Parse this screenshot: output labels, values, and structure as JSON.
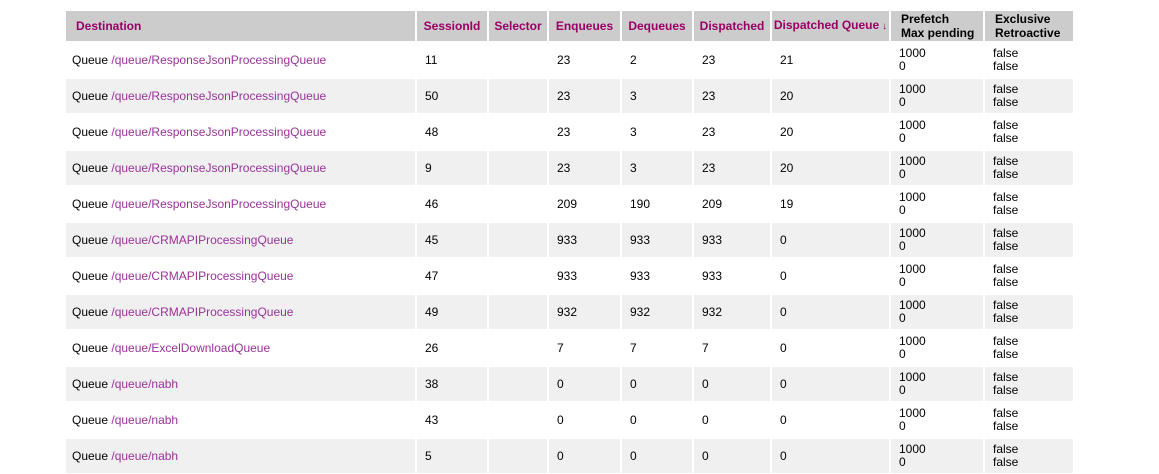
{
  "colors": {
    "header_bg": "#cccccc",
    "header_link": "#990066",
    "header_plain_text": "#000000",
    "row_stripe_bg": "#f0f0f0",
    "body_link": "#993399",
    "body_text": "#000000"
  },
  "table": {
    "columns": [
      {
        "id": "destination",
        "label": "Destination",
        "type": "link",
        "align": "left"
      },
      {
        "id": "session-id",
        "label": "SessionId",
        "type": "link",
        "align": "center"
      },
      {
        "id": "selector",
        "label": "Selector",
        "type": "link",
        "align": "center"
      },
      {
        "id": "enqueues",
        "label": "Enqueues",
        "type": "link",
        "align": "center"
      },
      {
        "id": "dequeues",
        "label": "Dequeues",
        "type": "link",
        "align": "center"
      },
      {
        "id": "dispatched",
        "label": "Dispatched",
        "type": "link",
        "align": "center"
      },
      {
        "id": "dispatched-queue",
        "label": "Dispatched Queue",
        "type": "link",
        "align": "center",
        "sort_indicator": "↓"
      },
      {
        "id": "prefetch-max-pending",
        "lines": [
          "Prefetch",
          "Max pending"
        ],
        "type": "plain",
        "align": "left"
      },
      {
        "id": "exclusive-retroactive",
        "lines": [
          "Exclusive",
          "Retroactive"
        ],
        "type": "plain",
        "align": "left"
      }
    ],
    "rows": [
      {
        "destination_prefix": "Queue",
        "destination_link": "/queue/ResponseJsonProcessingQueue",
        "session_id": "11",
        "selector": "",
        "enqueues": "23",
        "dequeues": "2",
        "dispatched": "23",
        "dispatched_queue": "21",
        "prefetch": "1000",
        "max_pending": "0",
        "exclusive": "false",
        "retroactive": "false"
      },
      {
        "destination_prefix": "Queue",
        "destination_link": "/queue/ResponseJsonProcessingQueue",
        "session_id": "50",
        "selector": "",
        "enqueues": "23",
        "dequeues": "3",
        "dispatched": "23",
        "dispatched_queue": "20",
        "prefetch": "1000",
        "max_pending": "0",
        "exclusive": "false",
        "retroactive": "false"
      },
      {
        "destination_prefix": "Queue",
        "destination_link": "/queue/ResponseJsonProcessingQueue",
        "session_id": "48",
        "selector": "",
        "enqueues": "23",
        "dequeues": "3",
        "dispatched": "23",
        "dispatched_queue": "20",
        "prefetch": "1000",
        "max_pending": "0",
        "exclusive": "false",
        "retroactive": "false"
      },
      {
        "destination_prefix": "Queue",
        "destination_link": "/queue/ResponseJsonProcessingQueue",
        "session_id": "9",
        "selector": "",
        "enqueues": "23",
        "dequeues": "3",
        "dispatched": "23",
        "dispatched_queue": "20",
        "prefetch": "1000",
        "max_pending": "0",
        "exclusive": "false",
        "retroactive": "false"
      },
      {
        "destination_prefix": "Queue",
        "destination_link": "/queue/ResponseJsonProcessingQueue",
        "session_id": "46",
        "selector": "",
        "enqueues": "209",
        "dequeues": "190",
        "dispatched": "209",
        "dispatched_queue": "19",
        "prefetch": "1000",
        "max_pending": "0",
        "exclusive": "false",
        "retroactive": "false"
      },
      {
        "destination_prefix": "Queue",
        "destination_link": "/queue/CRMAPIProcessingQueue",
        "session_id": "45",
        "selector": "",
        "enqueues": "933",
        "dequeues": "933",
        "dispatched": "933",
        "dispatched_queue": "0",
        "prefetch": "1000",
        "max_pending": "0",
        "exclusive": "false",
        "retroactive": "false"
      },
      {
        "destination_prefix": "Queue",
        "destination_link": "/queue/CRMAPIProcessingQueue",
        "session_id": "47",
        "selector": "",
        "enqueues": "933",
        "dequeues": "933",
        "dispatched": "933",
        "dispatched_queue": "0",
        "prefetch": "1000",
        "max_pending": "0",
        "exclusive": "false",
        "retroactive": "false"
      },
      {
        "destination_prefix": "Queue",
        "destination_link": "/queue/CRMAPIProcessingQueue",
        "session_id": "49",
        "selector": "",
        "enqueues": "932",
        "dequeues": "932",
        "dispatched": "932",
        "dispatched_queue": "0",
        "prefetch": "1000",
        "max_pending": "0",
        "exclusive": "false",
        "retroactive": "false"
      },
      {
        "destination_prefix": "Queue",
        "destination_link": "/queue/ExcelDownloadQueue",
        "session_id": "26",
        "selector": "",
        "enqueues": "7",
        "dequeues": "7",
        "dispatched": "7",
        "dispatched_queue": "0",
        "prefetch": "1000",
        "max_pending": "0",
        "exclusive": "false",
        "retroactive": "false"
      },
      {
        "destination_prefix": "Queue",
        "destination_link": "/queue/nabh",
        "session_id": "38",
        "selector": "",
        "enqueues": "0",
        "dequeues": "0",
        "dispatched": "0",
        "dispatched_queue": "0",
        "prefetch": "1000",
        "max_pending": "0",
        "exclusive": "false",
        "retroactive": "false"
      },
      {
        "destination_prefix": "Queue",
        "destination_link": "/queue/nabh",
        "session_id": "43",
        "selector": "",
        "enqueues": "0",
        "dequeues": "0",
        "dispatched": "0",
        "dispatched_queue": "0",
        "prefetch": "1000",
        "max_pending": "0",
        "exclusive": "false",
        "retroactive": "false"
      },
      {
        "destination_prefix": "Queue",
        "destination_link": "/queue/nabh",
        "session_id": "5",
        "selector": "",
        "enqueues": "0",
        "dequeues": "0",
        "dispatched": "0",
        "dispatched_queue": "0",
        "prefetch": "1000",
        "max_pending": "0",
        "exclusive": "false",
        "retroactive": "false"
      }
    ]
  }
}
